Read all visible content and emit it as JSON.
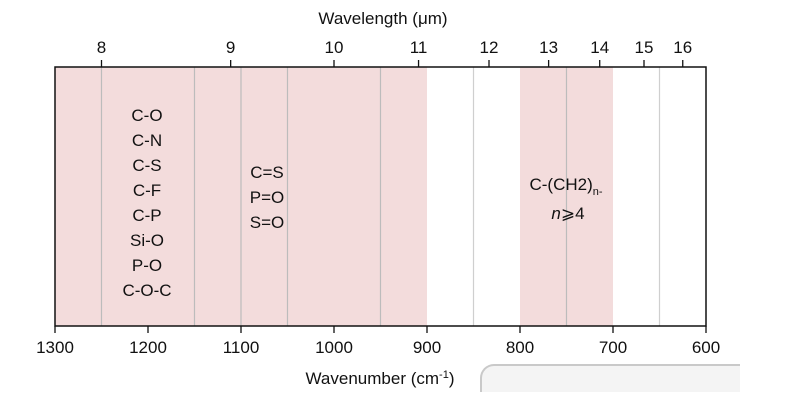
{
  "colors": {
    "band_fill": "#f3dcdc",
    "band_divider": "#bcbcbc",
    "frame": "#111111",
    "white_gap_line": "#cfcfcf"
  },
  "top_axis": {
    "title": "Wavelength (μm)",
    "ticks": [
      "8",
      "9",
      "10",
      "11",
      "12",
      "13",
      "14",
      "15",
      "16"
    ]
  },
  "bottom_axis": {
    "title_main": "Wavenumber (cm",
    "title_sup": "-1",
    "title_end": ")",
    "range": [
      1300,
      600
    ],
    "ticks": [
      "1300",
      "1200",
      "1100",
      "1000",
      "900",
      "800",
      "700",
      "600"
    ]
  },
  "bands": [
    {
      "from": 1300,
      "to": 900
    },
    {
      "from": 800,
      "to": 700
    }
  ],
  "band_dividers": [
    1250,
    1150,
    1100,
    1050,
    950,
    750
  ],
  "white_dividers": [
    850,
    650
  ],
  "groups": {
    "group1": [
      "C-O",
      "C-N",
      "C-S",
      "C-F",
      "C-P",
      "Si-O",
      "P-O",
      "C-O-C"
    ],
    "group2": [
      "C=S",
      "P=O",
      "S=O"
    ],
    "group3": {
      "line1_main": "C-(CH2)",
      "line1_sub": "n-",
      "line2_var": "n",
      "line2_rest": "⩾4"
    }
  }
}
